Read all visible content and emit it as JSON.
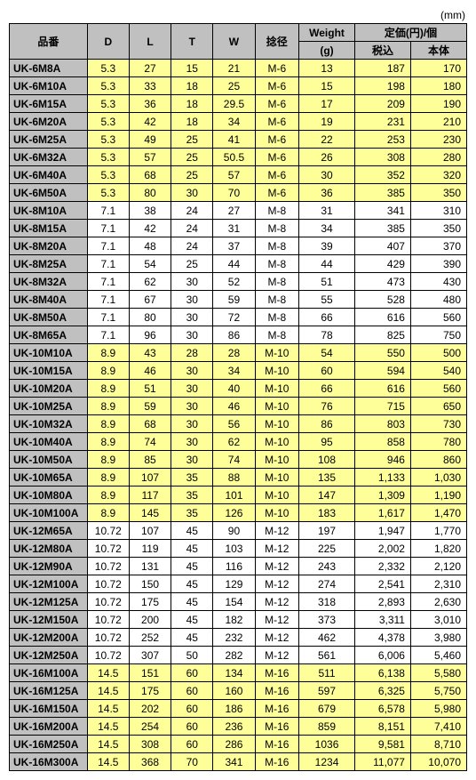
{
  "unit_label": "(mm)",
  "headers": {
    "part": "品番",
    "d": "D",
    "l": "L",
    "t": "T",
    "w": "W",
    "neji": "捻径",
    "weight": "Weight",
    "weight_unit": "(g)",
    "price_group": "定価(円)/個",
    "price_tax": "税込",
    "price_body": "本体"
  },
  "colors": {
    "header_bg": "#c0c0c0",
    "alt_bg": "#ffff99",
    "normal_bg": "#ffffff",
    "border": "#000000"
  },
  "rows": [
    {
      "part": "UK-6M8A",
      "d": "5.3",
      "l": "27",
      "t": "15",
      "w": "21",
      "n": "M-6",
      "wt": "13",
      "p1": "187",
      "p2": "170"
    },
    {
      "part": "UK-6M10A",
      "d": "5.3",
      "l": "33",
      "t": "18",
      "w": "25",
      "n": "M-6",
      "wt": "15",
      "p1": "198",
      "p2": "180"
    },
    {
      "part": "UK-6M15A",
      "d": "5.3",
      "l": "36",
      "t": "18",
      "w": "29.5",
      "n": "M-6",
      "wt": "17",
      "p1": "209",
      "p2": "190"
    },
    {
      "part": "UK-6M20A",
      "d": "5.3",
      "l": "42",
      "t": "18",
      "w": "34",
      "n": "M-6",
      "wt": "19",
      "p1": "231",
      "p2": "210"
    },
    {
      "part": "UK-6M25A",
      "d": "5.3",
      "l": "49",
      "t": "25",
      "w": "41",
      "n": "M-6",
      "wt": "22",
      "p1": "253",
      "p2": "230"
    },
    {
      "part": "UK-6M32A",
      "d": "5.3",
      "l": "57",
      "t": "25",
      "w": "50.5",
      "n": "M-6",
      "wt": "26",
      "p1": "308",
      "p2": "280"
    },
    {
      "part": "UK-6M40A",
      "d": "5.3",
      "l": "68",
      "t": "25",
      "w": "57",
      "n": "M-6",
      "wt": "30",
      "p1": "352",
      "p2": "320"
    },
    {
      "part": "UK-6M50A",
      "d": "5.3",
      "l": "80",
      "t": "30",
      "w": "70",
      "n": "M-6",
      "wt": "36",
      "p1": "385",
      "p2": "350"
    },
    {
      "part": "UK-8M10A",
      "d": "7.1",
      "l": "38",
      "t": "24",
      "w": "27",
      "n": "M-8",
      "wt": "31",
      "p1": "341",
      "p2": "310"
    },
    {
      "part": "UK-8M15A",
      "d": "7.1",
      "l": "42",
      "t": "24",
      "w": "31",
      "n": "M-8",
      "wt": "34",
      "p1": "385",
      "p2": "350"
    },
    {
      "part": "UK-8M20A",
      "d": "7.1",
      "l": "48",
      "t": "24",
      "w": "37",
      "n": "M-8",
      "wt": "39",
      "p1": "407",
      "p2": "370"
    },
    {
      "part": "UK-8M25A",
      "d": "7.1",
      "l": "54",
      "t": "25",
      "w": "44",
      "n": "M-8",
      "wt": "44",
      "p1": "429",
      "p2": "390"
    },
    {
      "part": "UK-8M32A",
      "d": "7.1",
      "l": "62",
      "t": "30",
      "w": "52",
      "n": "M-8",
      "wt": "51",
      "p1": "473",
      "p2": "430"
    },
    {
      "part": "UK-8M40A",
      "d": "7.1",
      "l": "67",
      "t": "30",
      "w": "59",
      "n": "M-8",
      "wt": "55",
      "p1": "528",
      "p2": "480"
    },
    {
      "part": "UK-8M50A",
      "d": "7.1",
      "l": "80",
      "t": "30",
      "w": "72",
      "n": "M-8",
      "wt": "66",
      "p1": "616",
      "p2": "560"
    },
    {
      "part": "UK-8M65A",
      "d": "7.1",
      "l": "96",
      "t": "30",
      "w": "86",
      "n": "M-8",
      "wt": "78",
      "p1": "825",
      "p2": "750"
    },
    {
      "part": "UK-10M10A",
      "d": "8.9",
      "l": "43",
      "t": "28",
      "w": "28",
      "n": "M-10",
      "wt": "54",
      "p1": "550",
      "p2": "500"
    },
    {
      "part": "UK-10M15A",
      "d": "8.9",
      "l": "46",
      "t": "30",
      "w": "34",
      "n": "M-10",
      "wt": "60",
      "p1": "594",
      "p2": "540"
    },
    {
      "part": "UK-10M20A",
      "d": "8.9",
      "l": "51",
      "t": "30",
      "w": "40",
      "n": "M-10",
      "wt": "66",
      "p1": "616",
      "p2": "560"
    },
    {
      "part": "UK-10M25A",
      "d": "8.9",
      "l": "59",
      "t": "30",
      "w": "46",
      "n": "M-10",
      "wt": "76",
      "p1": "715",
      "p2": "650"
    },
    {
      "part": "UK-10M32A",
      "d": "8.9",
      "l": "68",
      "t": "30",
      "w": "56",
      "n": "M-10",
      "wt": "86",
      "p1": "803",
      "p2": "730"
    },
    {
      "part": "UK-10M40A",
      "d": "8.9",
      "l": "74",
      "t": "30",
      "w": "62",
      "n": "M-10",
      "wt": "95",
      "p1": "858",
      "p2": "780"
    },
    {
      "part": "UK-10M50A",
      "d": "8.9",
      "l": "85",
      "t": "30",
      "w": "74",
      "n": "M-10",
      "wt": "108",
      "p1": "946",
      "p2": "860"
    },
    {
      "part": "UK-10M65A",
      "d": "8.9",
      "l": "107",
      "t": "35",
      "w": "88",
      "n": "M-10",
      "wt": "135",
      "p1": "1,133",
      "p2": "1,030"
    },
    {
      "part": "UK-10M80A",
      "d": "8.9",
      "l": "117",
      "t": "35",
      "w": "101",
      "n": "M-10",
      "wt": "147",
      "p1": "1,309",
      "p2": "1,190"
    },
    {
      "part": "UK-10M100A",
      "d": "8.9",
      "l": "145",
      "t": "35",
      "w": "126",
      "n": "M-10",
      "wt": "183",
      "p1": "1,617",
      "p2": "1,470"
    },
    {
      "part": "UK-12M65A",
      "d": "10.72",
      "l": "107",
      "t": "45",
      "w": "90",
      "n": "M-12",
      "wt": "197",
      "p1": "1,947",
      "p2": "1,770"
    },
    {
      "part": "UK-12M80A",
      "d": "10.72",
      "l": "119",
      "t": "45",
      "w": "103",
      "n": "M-12",
      "wt": "225",
      "p1": "2,002",
      "p2": "1,820"
    },
    {
      "part": "UK-12M90A",
      "d": "10.72",
      "l": "131",
      "t": "45",
      "w": "116",
      "n": "M-12",
      "wt": "243",
      "p1": "2,332",
      "p2": "2,120"
    },
    {
      "part": "UK-12M100A",
      "d": "10.72",
      "l": "150",
      "t": "45",
      "w": "129",
      "n": "M-12",
      "wt": "274",
      "p1": "2,541",
      "p2": "2,310"
    },
    {
      "part": "UK-12M125A",
      "d": "10.72",
      "l": "175",
      "t": "45",
      "w": "154",
      "n": "M-12",
      "wt": "318",
      "p1": "2,893",
      "p2": "2,630"
    },
    {
      "part": "UK-12M150A",
      "d": "10.72",
      "l": "200",
      "t": "45",
      "w": "182",
      "n": "M-12",
      "wt": "373",
      "p1": "3,311",
      "p2": "3,010"
    },
    {
      "part": "UK-12M200A",
      "d": "10.72",
      "l": "252",
      "t": "45",
      "w": "232",
      "n": "M-12",
      "wt": "462",
      "p1": "4,378",
      "p2": "3,980"
    },
    {
      "part": "UK-12M250A",
      "d": "10.72",
      "l": "307",
      "t": "50",
      "w": "282",
      "n": "M-12",
      "wt": "561",
      "p1": "6,006",
      "p2": "5,460"
    },
    {
      "part": "UK-16M100A",
      "d": "14.5",
      "l": "151",
      "t": "60",
      "w": "134",
      "n": "M-16",
      "wt": "511",
      "p1": "6,138",
      "p2": "5,580"
    },
    {
      "part": "UK-16M125A",
      "d": "14.5",
      "l": "175",
      "t": "60",
      "w": "160",
      "n": "M-16",
      "wt": "597",
      "p1": "6,325",
      "p2": "5,750"
    },
    {
      "part": "UK-16M150A",
      "d": "14.5",
      "l": "202",
      "t": "60",
      "w": "186",
      "n": "M-16",
      "wt": "679",
      "p1": "6,578",
      "p2": "5,980"
    },
    {
      "part": "UK-16M200A",
      "d": "14.5",
      "l": "254",
      "t": "60",
      "w": "236",
      "n": "M-16",
      "wt": "859",
      "p1": "8,151",
      "p2": "7,410"
    },
    {
      "part": "UK-16M250A",
      "d": "14.5",
      "l": "308",
      "t": "60",
      "w": "286",
      "n": "M-16",
      "wt": "1036",
      "p1": "9,581",
      "p2": "8,710"
    },
    {
      "part": "UK-16M300A",
      "d": "14.5",
      "l": "368",
      "t": "70",
      "w": "341",
      "n": "M-16",
      "wt": "1234",
      "p1": "11,077",
      "p2": "10,070"
    }
  ],
  "prefix_styles": {
    "UK-6": "alt",
    "UK-8": "nor",
    "UK-10": "alt",
    "UK-12": "nor",
    "UK-16": "alt"
  }
}
